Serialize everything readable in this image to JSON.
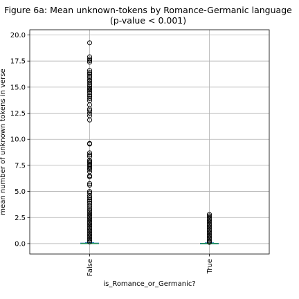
{
  "chart_data": {
    "type": "box",
    "title_line1": "Figure 6a: Mean unknown-tokens by Romance-Germanic language",
    "title_line2": "(p-value < 0.001)",
    "xlabel": "is_Romance_or_Germanic?",
    "ylabel": "mean number of unknown tokens in verse",
    "categories": [
      "False",
      "True"
    ],
    "ylim": [
      -1.0,
      20.5
    ],
    "yticks": [
      0.0,
      2.5,
      5.0,
      7.5,
      10.0,
      12.5,
      15.0,
      17.5,
      20.0
    ],
    "ytick_labels": [
      "0.0",
      "2.5",
      "5.0",
      "7.5",
      "10.0",
      "12.5",
      "15.0",
      "17.5",
      "20.0"
    ],
    "grid": true,
    "boxes": [
      {
        "category": "False",
        "q1": 0.0,
        "median": 0.0,
        "q3": 0.05,
        "whisker_low": 0.0,
        "whisker_high": 0.1,
        "fliers": [
          0.15,
          0.3,
          0.45,
          0.6,
          0.75,
          0.9,
          1.05,
          1.2,
          1.35,
          1.5,
          1.65,
          1.8,
          1.95,
          2.1,
          2.25,
          2.4,
          2.55,
          2.7,
          2.85,
          3.0,
          3.15,
          3.3,
          3.5,
          3.7,
          3.9,
          4.05,
          4.2,
          4.4,
          4.6,
          4.85,
          5.0,
          5.6,
          5.75,
          6.4,
          6.5,
          6.9,
          7.1,
          7.2,
          7.35,
          7.5,
          7.6,
          7.75,
          7.85,
          8.0,
          8.35,
          8.5,
          8.7,
          9.55,
          9.6,
          11.85,
          12.25,
          12.5,
          12.75,
          12.9,
          13.3,
          13.7,
          13.9,
          14.1,
          14.25,
          14.45,
          14.6,
          14.75,
          14.9,
          15.05,
          15.2,
          15.4,
          15.6,
          15.7,
          15.9,
          16.05,
          16.25,
          16.4,
          16.6,
          17.4,
          17.55,
          17.7,
          17.9,
          19.25
        ],
        "color": "#1f77b4"
      },
      {
        "category": "True",
        "q1": 0.0,
        "median": 0.0,
        "q3": 0.03,
        "whisker_low": 0.0,
        "whisker_high": 0.08,
        "fliers": [
          0.12,
          0.25,
          0.4,
          0.55,
          0.7,
          0.85,
          1.0,
          1.15,
          1.3,
          1.45,
          1.6,
          1.75,
          1.9,
          2.05,
          2.2,
          2.35,
          2.5,
          2.65,
          2.8
        ],
        "color": "#1f77b4"
      }
    ],
    "median_color": "#2ca02c"
  }
}
